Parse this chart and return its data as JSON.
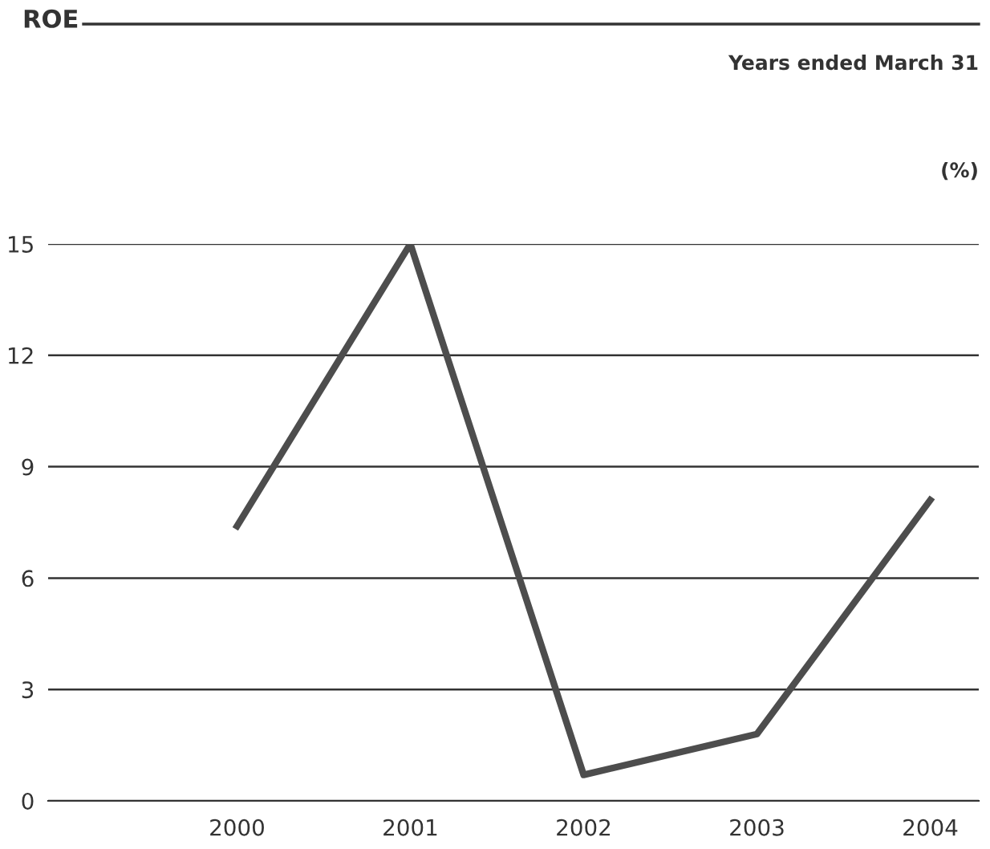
{
  "chart_data": {
    "type": "line",
    "title": "ROE",
    "subtitle": "Years ended March 31",
    "ylabel": "(%)",
    "categories": [
      "2000",
      "2001",
      "2002",
      "2003",
      "2004"
    ],
    "series": [
      {
        "color": "#4d4d4d",
        "values": [
          7.4,
          15.0,
          0.7,
          1.8,
          8.1
        ]
      }
    ],
    "ylim": [
      0,
      15
    ],
    "yticks": [
      0,
      3,
      6,
      9,
      12,
      15
    ],
    "grid": "y",
    "marker": "none",
    "line_style": "solid"
  }
}
